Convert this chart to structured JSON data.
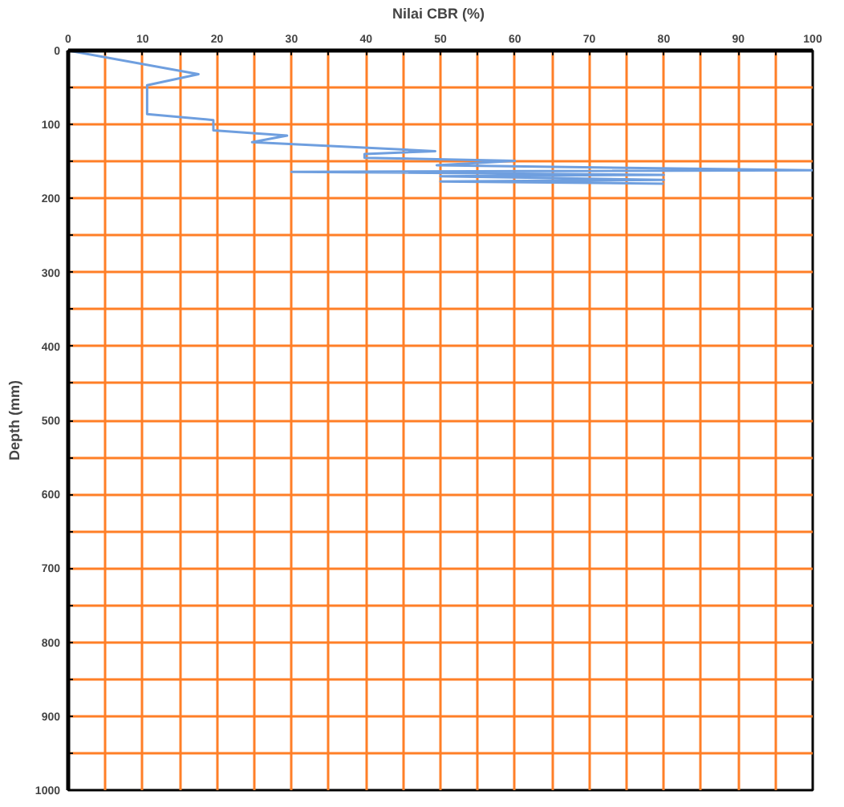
{
  "chart_data": {
    "type": "line",
    "xlabel": "Nilai  CBR (%)",
    "ylabel": "Depth (mm)",
    "xlim": [
      0,
      100
    ],
    "ylim": [
      1000,
      0
    ],
    "xticks": [
      0,
      {
        "value": 5,
        "label": null
      },
      10,
      {
        "value": 15,
        "label": null
      },
      20,
      {
        "value": 25,
        "label": null
      },
      30,
      {
        "value": 35,
        "label": null
      },
      40,
      {
        "value": 45,
        "label": null
      },
      50,
      {
        "value": 55,
        "label": null
      },
      60,
      {
        "value": 65,
        "label": null
      },
      70,
      {
        "value": 75,
        "label": null
      },
      80,
      {
        "value": 85,
        "label": null
      },
      90,
      {
        "value": 95,
        "label": null
      },
      100
    ],
    "yticks": [
      0,
      {
        "value": 50,
        "label": null
      },
      100,
      {
        "value": 150,
        "label": null
      },
      200,
      {
        "value": 250,
        "label": null
      },
      300,
      {
        "value": 350,
        "label": null
      },
      400,
      {
        "value": 450,
        "label": null
      },
      500,
      {
        "value": 550,
        "label": null
      },
      600,
      {
        "value": 650,
        "label": null
      },
      700,
      {
        "value": 750,
        "label": null
      },
      800,
      {
        "value": 850,
        "label": null
      },
      900,
      {
        "value": 950,
        "label": null
      },
      1000
    ],
    "grid": true,
    "marker": "none",
    "line_style": "solid",
    "series": [
      {
        "color": "#6f9fdf",
        "x": [
          0,
          17.5,
          10.6,
          10.6,
          19.5,
          19.5,
          29.4,
          24.7,
          49.3,
          39.8,
          39.8,
          60,
          49.5,
          100,
          30,
          80,
          50,
          80,
          50,
          80
        ],
        "values": [
          0,
          32,
          47,
          86,
          94,
          108,
          115,
          124,
          136,
          140,
          145,
          149,
          155,
          162,
          164,
          168,
          170,
          175,
          177,
          180
        ]
      }
    ]
  }
}
